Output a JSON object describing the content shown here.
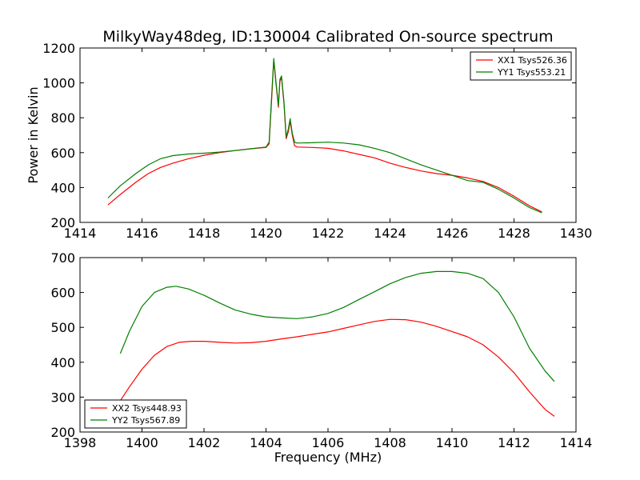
{
  "figure": {
    "title": "MilkyWay48deg, ID:130004 Calibrated On-source spectrum"
  },
  "chart_data": [
    {
      "type": "line",
      "title": "MilkyWay48deg, ID:130004 Calibrated On-source spectrum",
      "xlabel": "",
      "ylabel": "Power in Kelvin",
      "xlim": [
        1414,
        1430
      ],
      "ylim": [
        200,
        1200
      ],
      "xticks": [
        1414,
        1416,
        1418,
        1420,
        1422,
        1424,
        1426,
        1428,
        1430
      ],
      "yticks": [
        200,
        400,
        600,
        800,
        1000,
        1200
      ],
      "grid": false,
      "legend_position": "top-right",
      "series": [
        {
          "name": "XX1 Tsys526.36",
          "color": "#ff0000",
          "x": [
            1414.9,
            1415.3,
            1415.8,
            1416.2,
            1416.6,
            1417.0,
            1417.5,
            1418.0,
            1418.5,
            1419.0,
            1419.5,
            1420.0,
            1420.1,
            1420.18,
            1420.25,
            1420.32,
            1420.4,
            1420.45,
            1420.5,
            1420.58,
            1420.65,
            1420.72,
            1420.78,
            1420.85,
            1420.92,
            1421.0,
            1421.5,
            1422.0,
            1422.5,
            1423.0,
            1423.5,
            1424.0,
            1424.5,
            1425.0,
            1425.5,
            1426.0,
            1426.5,
            1427.0,
            1427.5,
            1428.0,
            1428.5,
            1428.9
          ],
          "values": [
            300,
            360,
            430,
            480,
            515,
            540,
            565,
            585,
            600,
            612,
            622,
            630,
            650,
            900,
            1130,
            1000,
            860,
            1010,
            1030,
            880,
            680,
            720,
            780,
            700,
            640,
            632,
            630,
            625,
            610,
            590,
            570,
            540,
            515,
            495,
            480,
            470,
            455,
            435,
            400,
            350,
            295,
            260
          ]
        },
        {
          "name": "YY1 Tsys553.21",
          "color": "#008000",
          "x": [
            1414.9,
            1415.3,
            1415.8,
            1416.2,
            1416.6,
            1417.0,
            1417.5,
            1418.0,
            1418.5,
            1419.0,
            1419.5,
            1420.0,
            1420.1,
            1420.18,
            1420.25,
            1420.32,
            1420.4,
            1420.45,
            1420.5,
            1420.58,
            1420.65,
            1420.72,
            1420.78,
            1420.85,
            1420.92,
            1421.0,
            1421.5,
            1422.0,
            1422.5,
            1423.0,
            1423.5,
            1424.0,
            1424.5,
            1425.0,
            1425.5,
            1426.0,
            1426.5,
            1427.0,
            1427.5,
            1428.0,
            1428.5,
            1428.9
          ],
          "values": [
            340,
            410,
            480,
            530,
            565,
            583,
            592,
            597,
            603,
            612,
            622,
            632,
            660,
            920,
            1140,
            1010,
            870,
            1020,
            1040,
            890,
            690,
            735,
            795,
            710,
            660,
            655,
            657,
            660,
            655,
            645,
            625,
            600,
            565,
            530,
            500,
            470,
            440,
            430,
            390,
            340,
            285,
            255
          ]
        }
      ]
    },
    {
      "type": "line",
      "title": "",
      "xlabel": "Frequency (MHz)",
      "ylabel": "",
      "xlim": [
        1398,
        1414
      ],
      "ylim": [
        200,
        700
      ],
      "xticks": [
        1398,
        1400,
        1402,
        1404,
        1406,
        1408,
        1410,
        1412,
        1414
      ],
      "yticks": [
        200,
        300,
        400,
        500,
        600,
        700
      ],
      "grid": false,
      "legend_position": "bottom-left",
      "series": [
        {
          "name": "XX2 Tsys448.93",
          "color": "#ff0000",
          "x": [
            1399.3,
            1399.6,
            1400.0,
            1400.4,
            1400.8,
            1401.2,
            1401.6,
            1402.0,
            1402.5,
            1403.0,
            1403.5,
            1404.0,
            1404.5,
            1405.0,
            1405.5,
            1406.0,
            1406.5,
            1407.0,
            1407.5,
            1408.0,
            1408.5,
            1409.0,
            1409.5,
            1410.0,
            1410.5,
            1411.0,
            1411.5,
            1412.0,
            1412.5,
            1413.0,
            1413.3
          ],
          "values": [
            290,
            330,
            380,
            420,
            445,
            457,
            460,
            460,
            457,
            455,
            456,
            460,
            467,
            473,
            480,
            487,
            497,
            507,
            517,
            523,
            522,
            515,
            503,
            488,
            473,
            450,
            415,
            370,
            315,
            265,
            245
          ]
        },
        {
          "name": "YY2 Tsys567.89",
          "color": "#008000",
          "x": [
            1399.3,
            1399.6,
            1400.0,
            1400.4,
            1400.8,
            1401.1,
            1401.5,
            1402.0,
            1402.5,
            1403.0,
            1403.5,
            1404.0,
            1404.5,
            1405.0,
            1405.5,
            1406.0,
            1406.5,
            1407.0,
            1407.5,
            1408.0,
            1408.5,
            1409.0,
            1409.5,
            1410.0,
            1410.5,
            1411.0,
            1411.5,
            1412.0,
            1412.5,
            1413.0,
            1413.3
          ],
          "values": [
            425,
            490,
            560,
            600,
            615,
            618,
            610,
            592,
            570,
            550,
            538,
            530,
            527,
            525,
            530,
            540,
            557,
            580,
            602,
            625,
            643,
            655,
            660,
            660,
            655,
            640,
            600,
            530,
            440,
            375,
            345
          ]
        }
      ]
    }
  ]
}
